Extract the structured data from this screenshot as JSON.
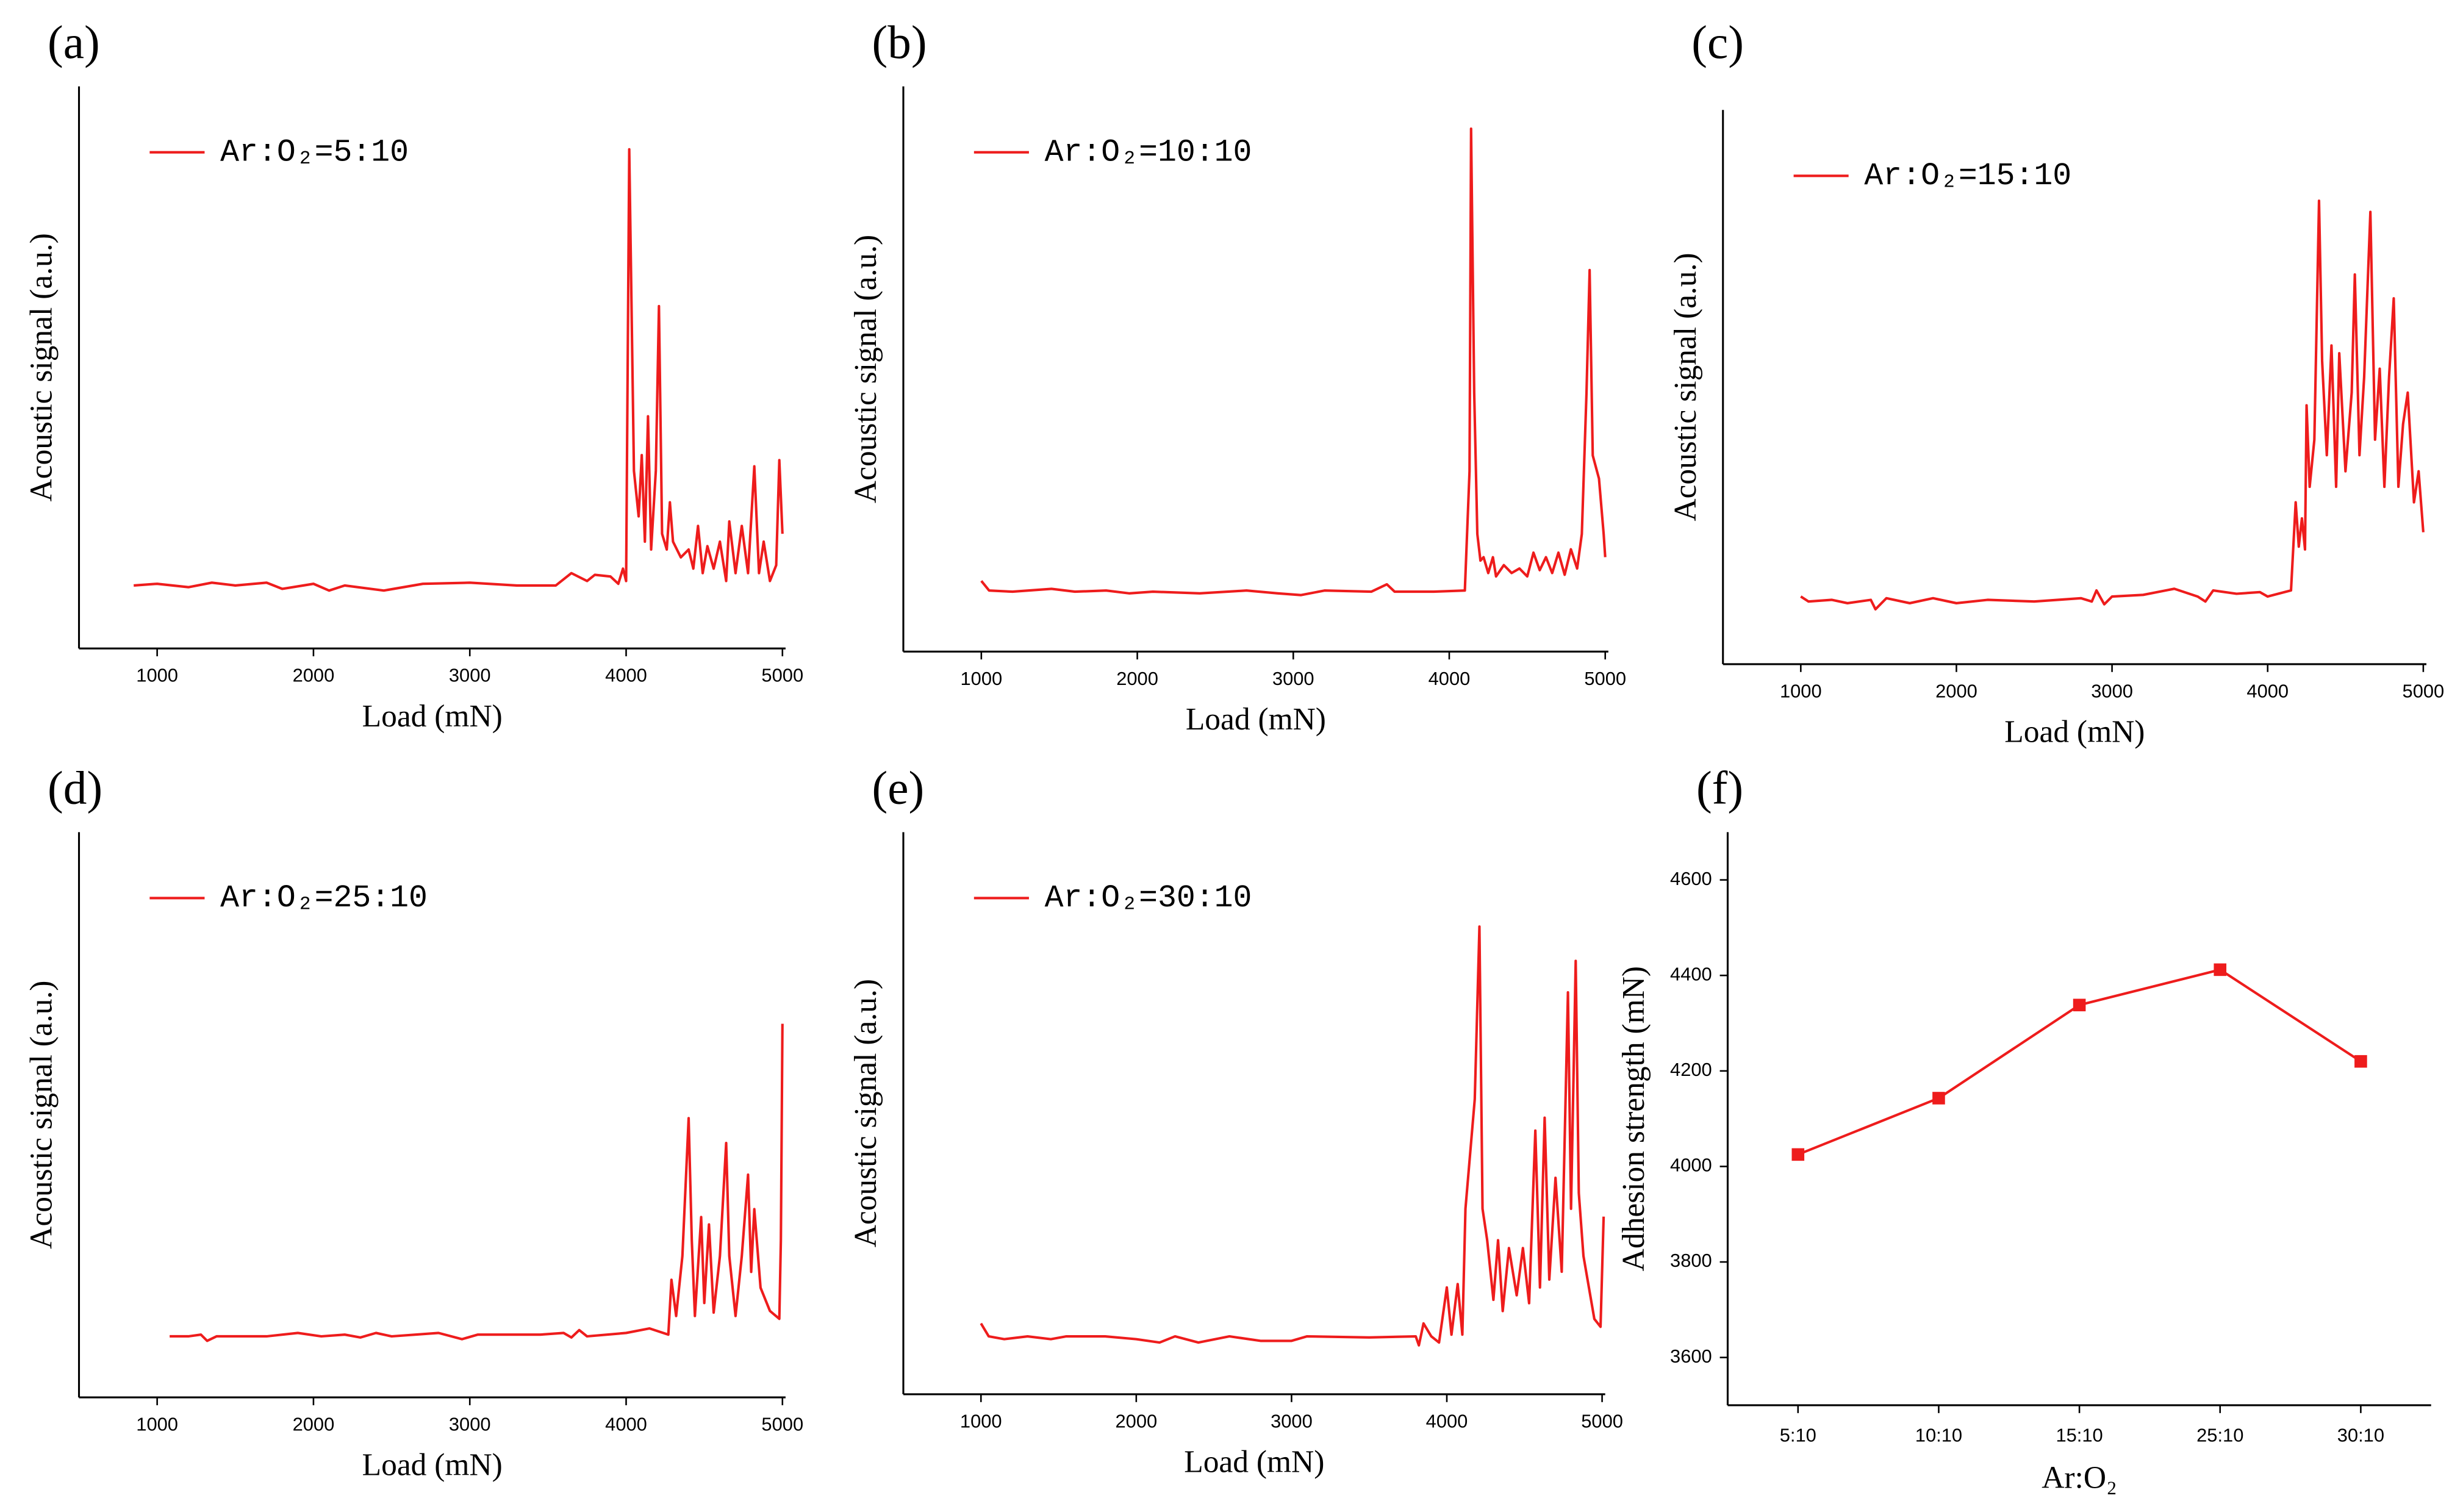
{
  "chart_data": [
    {
      "type": "line",
      "label": "(a)",
      "xlabel": "Load (mN)",
      "ylabel": "Acoustic signal (a.u.)",
      "xlim": [
        500,
        5020
      ],
      "xticks": [
        1000,
        2000,
        3000,
        4000,
        5000
      ],
      "ylim": [
        0,
        100
      ],
      "x": [
        850,
        1000,
        1200,
        1350,
        1500,
        1700,
        1800,
        2000,
        2100,
        2200,
        2450,
        2700,
        3000,
        3300,
        3550,
        3650,
        3750,
        3800,
        3900,
        3950,
        3980,
        4000,
        4020,
        4050,
        4080,
        4100,
        4120,
        4140,
        4160,
        4190,
        4210,
        4230,
        4260,
        4280,
        4300,
        4350,
        4400,
        4430,
        4460,
        4490,
        4520,
        4560,
        4600,
        4640,
        4660,
        4700,
        4740,
        4780,
        4820,
        4850,
        4880,
        4920,
        4960,
        4980,
        5000
      ],
      "series": [
        {
          "name": "Ar:O₂=5:10",
          "color": "#ee1c1c",
          "values": [
            11.2,
            11.5,
            10.9,
            11.7,
            11.2,
            11.7,
            10.6,
            11.5,
            10.3,
            11.2,
            10.3,
            11.5,
            11.7,
            11.2,
            11.2,
            13.4,
            12.0,
            13.1,
            12.8,
            11.5,
            14.2,
            12.0,
            88.8,
            31.6,
            23.5,
            34.4,
            19.0,
            41.3,
            17.6,
            31.6,
            60.9,
            20.4,
            17.6,
            26.0,
            19.0,
            16.2,
            17.6,
            14.2,
            21.8,
            13.4,
            18.2,
            14.2,
            19.0,
            12.0,
            22.6,
            13.4,
            21.8,
            13.4,
            32.4,
            13.4,
            19.0,
            12.0,
            14.8,
            33.5,
            20.4
          ]
        }
      ]
    },
    {
      "type": "line",
      "label": "(b)",
      "xlabel": "Load (mN)",
      "ylabel": "Acoustic signal (a.u.)",
      "xlim": [
        500,
        5020
      ],
      "xticks": [
        1000,
        2000,
        3000,
        4000,
        5000
      ],
      "ylim": [
        0,
        100
      ],
      "x": [
        1000,
        1050,
        1200,
        1450,
        1600,
        1800,
        1950,
        2100,
        2400,
        2700,
        2900,
        3050,
        3200,
        3500,
        3600,
        3650,
        3900,
        4100,
        4130,
        4140,
        4160,
        4180,
        4200,
        4220,
        4250,
        4280,
        4300,
        4350,
        4400,
        4450,
        4500,
        4540,
        4580,
        4620,
        4660,
        4700,
        4740,
        4780,
        4820,
        4850,
        4880,
        4900,
        4920,
        4960,
        4990,
        5000
      ],
      "series": [
        {
          "name": "Ar:O₂=10:10",
          "color": "#ee1c1c",
          "values": [
            12.5,
            10.8,
            10.6,
            11.1,
            10.6,
            10.8,
            10.3,
            10.6,
            10.3,
            10.8,
            10.3,
            10.0,
            10.8,
            10.6,
            11.9,
            10.6,
            10.6,
            10.8,
            31.9,
            92.5,
            45.8,
            20.8,
            16.1,
            16.7,
            13.9,
            16.7,
            13.3,
            15.3,
            13.9,
            14.7,
            13.3,
            17.5,
            14.4,
            16.7,
            13.9,
            17.5,
            13.6,
            18.1,
            14.7,
            20.8,
            45.8,
            67.5,
            34.7,
            30.6,
            20.8,
            16.7
          ]
        }
      ]
    },
    {
      "type": "line",
      "label": "(c)",
      "xlabel": "Load (mN)",
      "ylabel": "Acoustic signal (a.u.)",
      "xlim": [
        500,
        5020
      ],
      "xticks": [
        1000,
        2000,
        3000,
        4000,
        5000
      ],
      "ylim": [
        0,
        100
      ],
      "x": [
        1000,
        1050,
        1200,
        1300,
        1450,
        1480,
        1550,
        1700,
        1850,
        2000,
        2200,
        2500,
        2800,
        2870,
        2900,
        2950,
        3000,
        3200,
        3400,
        3550,
        3600,
        3650,
        3800,
        3950,
        4000,
        4150,
        4180,
        4200,
        4220,
        4240,
        4250,
        4270,
        4300,
        4330,
        4350,
        4380,
        4410,
        4440,
        4460,
        4500,
        4540,
        4560,
        4590,
        4620,
        4660,
        4690,
        4720,
        4750,
        4780,
        4810,
        4840,
        4870,
        4900,
        4940,
        4970,
        5000
      ],
      "series": [
        {
          "name": "Ar:O₂=15:10",
          "color": "#ee1c1c",
          "values": [
            12.2,
            11.3,
            11.6,
            11.0,
            11.6,
            9.9,
            11.9,
            11.0,
            11.9,
            11.0,
            11.6,
            11.3,
            11.9,
            11.3,
            13.3,
            10.8,
            12.2,
            12.5,
            13.6,
            12.2,
            11.3,
            13.3,
            12.7,
            13.0,
            12.2,
            13.3,
            29.2,
            21.2,
            26.3,
            20.7,
            46.7,
            32.0,
            40.5,
            83.6,
            54.7,
            37.7,
            57.5,
            32.0,
            56.1,
            34.8,
            49.0,
            70.3,
            37.7,
            51.8,
            81.6,
            40.5,
            53.3,
            32.0,
            51.8,
            66.0,
            32.0,
            43.3,
            49.0,
            29.2,
            34.8,
            23.8
          ]
        }
      ]
    },
    {
      "type": "line",
      "label": "(d)",
      "xlabel": "Load (mN)",
      "ylabel": "Acoustic signal (a.u.)",
      "xlim": [
        500,
        5020
      ],
      "xticks": [
        1000,
        2000,
        3000,
        4000,
        5000
      ],
      "ylim": [
        0,
        100
      ],
      "x": [
        1080,
        1200,
        1280,
        1320,
        1380,
        1700,
        1900,
        2050,
        2200,
        2300,
        2400,
        2500,
        2800,
        2950,
        3050,
        3450,
        3600,
        3650,
        3700,
        3750,
        4000,
        4150,
        4270,
        4290,
        4320,
        4360,
        4400,
        4420,
        4440,
        4480,
        4500,
        4530,
        4560,
        4600,
        4640,
        4660,
        4700,
        4740,
        4780,
        4800,
        4820,
        4860,
        4920,
        4980,
        4990,
        5000
      ],
      "series": [
        {
          "name": "Ar:O₂=25:10",
          "color": "#ee1c1c",
          "values": [
            10.8,
            10.8,
            11.1,
            10.0,
            10.8,
            10.8,
            11.4,
            10.8,
            11.1,
            10.6,
            11.4,
            10.8,
            11.4,
            10.3,
            11.1,
            11.1,
            11.4,
            10.6,
            11.9,
            10.8,
            11.4,
            12.2,
            11.1,
            20.8,
            14.4,
            25.0,
            49.4,
            27.8,
            14.4,
            31.9,
            16.7,
            30.6,
            15.0,
            25.0,
            45.0,
            25.0,
            14.4,
            25.0,
            39.4,
            22.2,
            33.3,
            19.4,
            15.3,
            13.9,
            27.8,
            66.1
          ]
        }
      ]
    },
    {
      "type": "line",
      "label": "(e)",
      "xlabel": "Load (mN)",
      "ylabel": "Acoustic signal (a.u.)",
      "xlim": [
        500,
        5020
      ],
      "xticks": [
        1000,
        2000,
        3000,
        4000,
        5000
      ],
      "ylim": [
        0,
        100
      ],
      "x": [
        1000,
        1050,
        1150,
        1300,
        1450,
        1550,
        1800,
        2000,
        2150,
        2250,
        2400,
        2600,
        2800,
        3000,
        3100,
        3500,
        3800,
        3820,
        3850,
        3900,
        3950,
        4000,
        4030,
        4070,
        4100,
        4120,
        4180,
        4210,
        4230,
        4260,
        4300,
        4330,
        4360,
        4400,
        4450,
        4490,
        4530,
        4570,
        4600,
        4630,
        4660,
        4700,
        4740,
        4780,
        4800,
        4830,
        4850,
        4880,
        4950,
        4990,
        5010
      ],
      "series": [
        {
          "name": "Ar:O₂=30:10",
          "color": "#ee1c1c",
          "values": [
            12.6,
            10.3,
            9.8,
            10.3,
            9.8,
            10.3,
            10.3,
            9.8,
            9.2,
            10.3,
            9.2,
            10.3,
            9.5,
            9.5,
            10.3,
            10.1,
            10.3,
            8.7,
            12.6,
            10.3,
            9.2,
            19.0,
            10.6,
            19.6,
            10.6,
            33.0,
            52.5,
            83.2,
            33.0,
            27.4,
            16.8,
            27.4,
            14.8,
            26.0,
            17.6,
            26.0,
            16.2,
            46.9,
            19.0,
            49.2,
            20.4,
            38.5,
            21.8,
            71.5,
            33.0,
            77.1,
            35.8,
            24.6,
            13.4,
            12.0,
            31.6
          ]
        }
      ]
    },
    {
      "type": "line",
      "label": "(f)",
      "xlabel": "Ar:O₂",
      "ylabel": "Adhesion strength (mN)",
      "marker": "square",
      "categories": [
        "5:10",
        "10:10",
        "15:10",
        "25:10",
        "30:10"
      ],
      "ylim": [
        3500,
        4700
      ],
      "yticks": [
        3600,
        3800,
        4000,
        4200,
        4400,
        4600
      ],
      "series": [
        {
          "color": "#ee1c1c",
          "values": [
            4025,
            4143,
            4338,
            4412,
            4220
          ]
        }
      ]
    }
  ]
}
